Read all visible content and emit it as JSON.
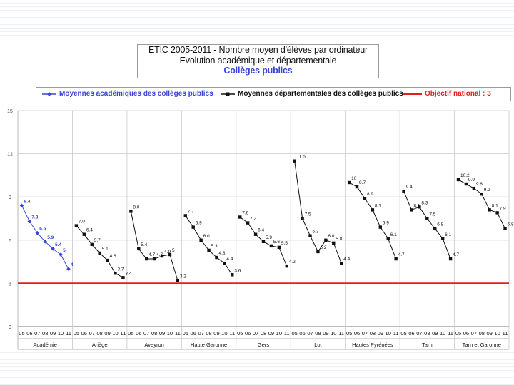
{
  "title": {
    "line1": "ETIC 2005-2011 - Nombre moyen d'élèves par ordinateur",
    "line2": "Evolution académique et départementale",
    "line3": "Collèges publics"
  },
  "legend": {
    "academic": "Moyennes académiques des collèges publics",
    "departmental": "Moyennes départementales des collèges publics",
    "objective": "Objectif national : 3"
  },
  "colors": {
    "academic": "#3b44d8",
    "departmental": "#111111",
    "objective": "#e31e1e",
    "grid": "#c8c8c8"
  },
  "chart_data": {
    "type": "line",
    "title": "ETIC 2005-2011 - Nombre moyen d'élèves par ordinateur",
    "subtitle": "Evolution académique et départementale - Collèges publics",
    "ylim": [
      0,
      15
    ],
    "yticks": [
      "0",
      "3",
      "6",
      "9",
      "12",
      "15"
    ],
    "year_labels": [
      "05",
      "06",
      "07",
      "08",
      "09",
      "10",
      "11"
    ],
    "objective_value": 3,
    "groups": [
      {
        "name": "Académie",
        "series": "academic",
        "values": [
          8.4,
          7.3,
          6.5,
          5.9,
          5.4,
          5.0,
          4.0
        ],
        "labels": [
          "8.4",
          "7.3",
          "6.5",
          "5.9",
          "5.4",
          "5",
          "4"
        ]
      },
      {
        "name": "Ariège",
        "series": "departmental",
        "values": [
          7.0,
          6.4,
          5.7,
          5.1,
          4.6,
          3.7,
          3.4
        ],
        "labels": [
          "7.0",
          "6.4",
          "5.7",
          "5.1",
          "4.6",
          "3.7",
          "3.4"
        ]
      },
      {
        "name": "Aveyron",
        "series": "departmental",
        "values": [
          8.0,
          5.4,
          4.7,
          4.7,
          4.9,
          5.0,
          3.2
        ],
        "labels": [
          "8.0",
          "5.4",
          "4.7",
          "4.7",
          "4.9",
          "5",
          "3.2"
        ]
      },
      {
        "name": "Haute Garonne",
        "series": "departmental",
        "values": [
          7.7,
          6.9,
          6.0,
          5.3,
          4.8,
          4.4,
          3.6
        ],
        "labels": [
          "7.7",
          "6.9",
          "6.0",
          "5.3",
          "4.8",
          "4.4",
          "3.6"
        ]
      },
      {
        "name": "Gers",
        "series": "departmental",
        "values": [
          7.6,
          7.2,
          6.4,
          5.9,
          5.6,
          5.5,
          4.2
        ],
        "labels": [
          "7.6",
          "7.2",
          "6.4",
          "5.9",
          "5.6",
          "5.5",
          "4.2"
        ]
      },
      {
        "name": "Lot",
        "series": "departmental",
        "values": [
          11.5,
          7.5,
          6.3,
          5.2,
          6.0,
          5.8,
          4.4
        ],
        "labels": [
          "11.5",
          "7.5",
          "6.3",
          "5.2",
          "6.0",
          "5.8",
          "4.4"
        ]
      },
      {
        "name": "Hautes Pyrénées",
        "series": "departmental",
        "values": [
          10.0,
          9.7,
          8.9,
          8.1,
          6.9,
          6.1,
          4.7
        ],
        "labels": [
          "10",
          "9.7",
          "8.9",
          "8.1",
          "6.9",
          "6.1",
          "4.7"
        ]
      },
      {
        "name": "Tarn",
        "series": "departmental",
        "values": [
          9.4,
          8.1,
          8.3,
          7.5,
          6.8,
          6.1,
          4.7
        ],
        "labels": [
          "9.4",
          "8.1",
          "8.3",
          "7.5",
          "6.8",
          "6.1",
          "4.7"
        ]
      },
      {
        "name": "Tarn et Garonne",
        "series": "departmental",
        "values": [
          10.2,
          9.9,
          9.6,
          9.2,
          8.1,
          7.9,
          6.8
        ],
        "labels": [
          "10.2",
          "9.9",
          "9.6",
          "9.2",
          "8.1",
          "7.9",
          "6.8"
        ]
      }
    ]
  }
}
